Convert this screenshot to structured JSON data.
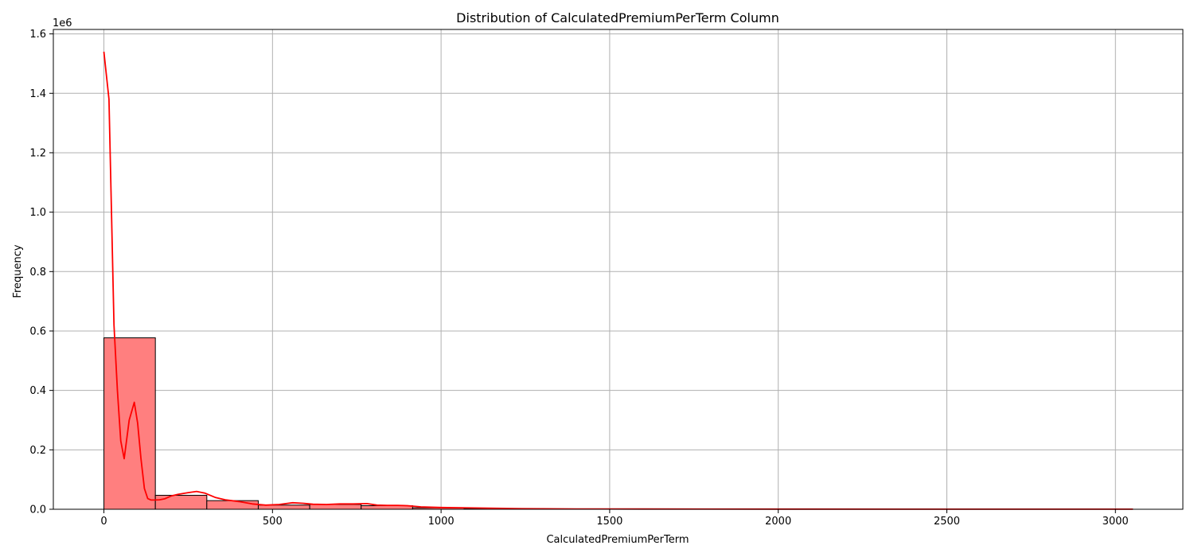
{
  "chart_data": {
    "type": "bar",
    "title": "Distribution of CalculatedPremiumPerTerm Column",
    "xlabel": "CalculatedPremiumPerTerm",
    "ylabel": "Frequency",
    "y_offset_label": "1e6",
    "xlim": [
      -150,
      3200
    ],
    "ylim": [
      0,
      1.615
    ],
    "x_ticks": [
      0,
      500,
      1000,
      1500,
      2000,
      2500,
      3000
    ],
    "x_tick_labels": [
      "0",
      "500",
      "1000",
      "1500",
      "2000",
      "2500",
      "3000"
    ],
    "y_ticks": [
      0,
      0.2,
      0.4,
      0.6,
      0.8,
      1.0,
      1.2,
      1.4,
      1.6
    ],
    "y_tick_labels": [
      "0.0",
      "0.2",
      "0.4",
      "0.6",
      "0.8",
      "1.0",
      "1.2",
      "1.4",
      "1.6"
    ],
    "grid": true,
    "colors": {
      "bar_fill": "#ff7f7f",
      "bar_edge": "#000000",
      "kde_line": "#ff0000",
      "grid": "#b0b0b0"
    },
    "bins": [
      {
        "x0": 0,
        "x1": 152.6,
        "value": 0.577
      },
      {
        "x0": 152.6,
        "x1": 305.2,
        "value": 0.047
      },
      {
        "x0": 305.2,
        "x1": 457.8,
        "value": 0.029
      },
      {
        "x0": 457.8,
        "x1": 610.4,
        "value": 0.014
      },
      {
        "x0": 610.4,
        "x1": 763.0,
        "value": 0.016
      },
      {
        "x0": 763.0,
        "x1": 915.6,
        "value": 0.012
      },
      {
        "x0": 915.6,
        "x1": 1068.2,
        "value": 0.005
      },
      {
        "x0": 1068.2,
        "x1": 1220.8,
        "value": 0.002
      },
      {
        "x0": 1220.8,
        "x1": 1373.4,
        "value": 0.0005
      },
      {
        "x0": 1373.4,
        "x1": 1526.0,
        "value": 0.0003
      },
      {
        "x0": 1526.0,
        "x1": 1678.6,
        "value": 0.0002
      },
      {
        "x0": 1678.6,
        "x1": 1831.2,
        "value": 0.0001
      },
      {
        "x0": 1831.2,
        "x1": 1983.8,
        "value": 0.0001
      },
      {
        "x0": 1983.8,
        "x1": 2136.4,
        "value": 0.0001
      },
      {
        "x0": 2136.4,
        "x1": 2289.0,
        "value": 0.0001
      },
      {
        "x0": 2289.0,
        "x1": 2441.6,
        "value": 0.0001
      },
      {
        "x0": 2441.6,
        "x1": 2594.2,
        "value": 0.0001
      },
      {
        "x0": 2594.2,
        "x1": 2746.8,
        "value": 0.0001
      },
      {
        "x0": 2746.8,
        "x1": 2899.4,
        "value": 0.0001
      },
      {
        "x0": 2899.4,
        "x1": 3052.0,
        "value": 0.0001
      }
    ],
    "kde": {
      "x": [
        0,
        15,
        30,
        40,
        50,
        60,
        75,
        90,
        100,
        110,
        120,
        130,
        140,
        150,
        165,
        180,
        200,
        220,
        250,
        275,
        300,
        330,
        360,
        400,
        440,
        480,
        520,
        560,
        590,
        620,
        660,
        700,
        740,
        780,
        810,
        840,
        870,
        900,
        940,
        1000,
        1060,
        1120,
        1180,
        1240,
        1300,
        1400,
        1600,
        2000,
        2500,
        3052
      ],
      "y": [
        1.54,
        1.38,
        0.62,
        0.4,
        0.23,
        0.17,
        0.3,
        0.36,
        0.29,
        0.17,
        0.07,
        0.036,
        0.031,
        0.031,
        0.032,
        0.035,
        0.045,
        0.05,
        0.056,
        0.06,
        0.054,
        0.04,
        0.032,
        0.026,
        0.018,
        0.014,
        0.016,
        0.022,
        0.02,
        0.017,
        0.016,
        0.018,
        0.018,
        0.019,
        0.014,
        0.013,
        0.013,
        0.012,
        0.008,
        0.006,
        0.005,
        0.004,
        0.003,
        0.002,
        0.0015,
        0.001,
        0.0008,
        0.0005,
        0.0003,
        0.0002
      ]
    }
  }
}
